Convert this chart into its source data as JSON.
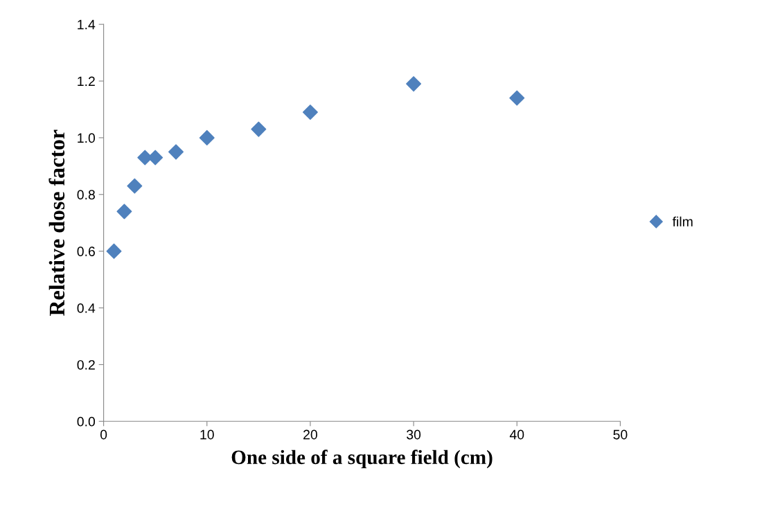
{
  "chart_data": {
    "type": "scatter",
    "xlabel": "One side of a square field (cm)",
    "ylabel": "Relative dose factor",
    "x": [
      1,
      2,
      3,
      4,
      5,
      7,
      10,
      15,
      20,
      30,
      40
    ],
    "series": [
      {
        "name": "film",
        "color": "#4f81bd",
        "values": [
          0.6,
          0.74,
          0.83,
          0.93,
          0.93,
          0.95,
          1.0,
          1.03,
          1.09,
          1.19,
          1.14
        ]
      }
    ],
    "xlim": [
      0,
      50
    ],
    "xticks": [
      0,
      10,
      20,
      30,
      40,
      50
    ],
    "ylim": [
      0,
      1.4
    ],
    "yticks": [
      {
        "value": 0,
        "label": "0.0"
      },
      {
        "value": 0.2,
        "label": "0.2"
      },
      {
        "value": 0.4,
        "label": "0.4"
      },
      {
        "value": 0.6,
        "label": "0.6"
      },
      {
        "value": 0.8,
        "label": "0.8"
      },
      {
        "value": 1.0,
        "label": "1.0"
      },
      {
        "value": 1.2,
        "label": "1.2"
      },
      {
        "value": 1.4,
        "label": "1.4"
      }
    ],
    "marker": "diamond",
    "legend": "right",
    "grid": false
  }
}
